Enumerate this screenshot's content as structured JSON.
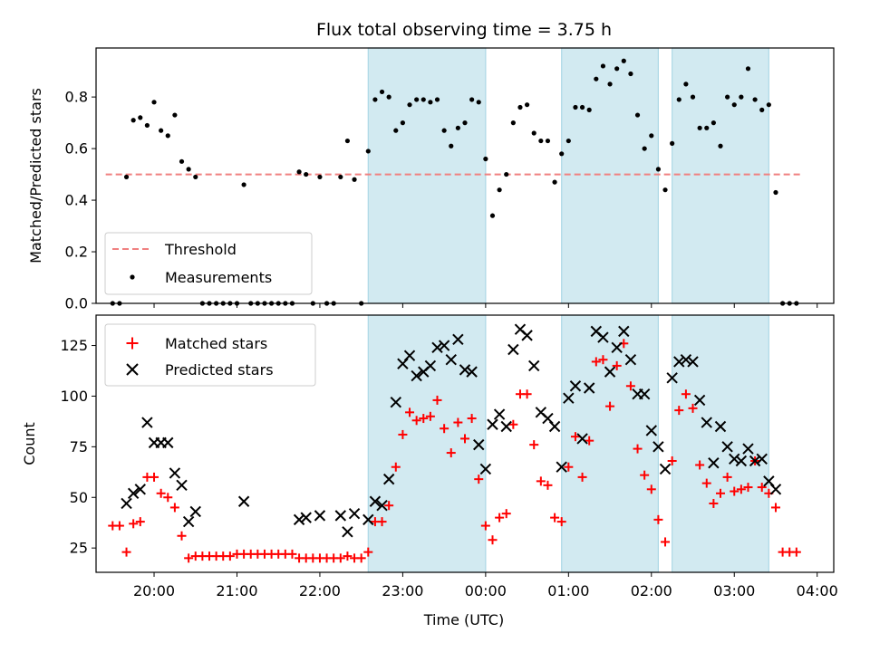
{
  "title": "Flux total observing time = 3.75 h",
  "colors": {
    "threshold": "#f08080",
    "measurements": "#000000",
    "matched": "#ff0000",
    "predicted": "#000000",
    "shade": "#add8e6"
  },
  "chart_data": [
    {
      "type": "scatter",
      "ylabel": "Matched/Predicted stars",
      "xlim": [
        19.3,
        4.2
      ],
      "ylim": [
        0,
        0.99
      ],
      "yticks": [
        0.0,
        0.2,
        0.4,
        0.6,
        0.8
      ],
      "ytick_labels": [
        "0.0",
        "0.2",
        "0.4",
        "0.6",
        "0.8"
      ],
      "shaded_regions": [
        [
          "22:35",
          "00:00"
        ],
        [
          "00:55",
          "02:05"
        ],
        [
          "02:15",
          "03:25"
        ]
      ],
      "legend_position": "lower-left",
      "threshold": {
        "name": "Threshold",
        "value": 0.5,
        "x_range": [
          "19:25",
          "03:50"
        ],
        "style": "dashed"
      },
      "series": [
        {
          "name": "Measurements",
          "x": [
            "19:30",
            "19:35",
            "19:40",
            "19:45",
            "19:50",
            "19:55",
            "20:00",
            "20:05",
            "20:10",
            "20:15",
            "20:20",
            "20:25",
            "20:30",
            "20:35",
            "20:40",
            "20:45",
            "20:50",
            "20:55",
            "21:00",
            "21:05",
            "21:10",
            "21:15",
            "21:20",
            "21:25",
            "21:30",
            "21:35",
            "21:40",
            "21:45",
            "21:50",
            "21:55",
            "22:00",
            "22:05",
            "22:10",
            "22:15",
            "22:20",
            "22:25",
            "22:30",
            "22:35",
            "22:40",
            "22:45",
            "22:50",
            "22:55",
            "23:00",
            "23:05",
            "23:10",
            "23:15",
            "23:20",
            "23:25",
            "23:30",
            "23:35",
            "23:40",
            "23:45",
            "23:50",
            "23:55",
            "00:00",
            "00:05",
            "00:10",
            "00:15",
            "00:20",
            "00:25",
            "00:30",
            "00:35",
            "00:40",
            "00:45",
            "00:50",
            "00:55",
            "01:00",
            "01:05",
            "01:10",
            "01:15",
            "01:20",
            "01:25",
            "01:30",
            "01:35",
            "01:40",
            "01:45",
            "01:50",
            "01:55",
            "02:00",
            "02:05",
            "02:10",
            "02:15",
            "02:20",
            "02:25",
            "02:30",
            "02:35",
            "02:40",
            "02:45",
            "02:50",
            "02:55",
            "03:00",
            "03:05",
            "03:10",
            "03:15",
            "03:20",
            "03:25",
            "03:30",
            "03:35",
            "03:40",
            "03:45"
          ],
          "y": [
            0.0,
            0.0,
            0.49,
            0.71,
            0.72,
            0.69,
            0.78,
            0.67,
            0.65,
            0.73,
            0.55,
            0.52,
            0.49,
            0.0,
            0.0,
            0.0,
            0.0,
            0.0,
            0.0,
            0.46,
            0.0,
            0.0,
            0.0,
            0.0,
            0.0,
            0.0,
            0.0,
            0.51,
            0.5,
            0.0,
            0.49,
            0.0,
            0.0,
            0.49,
            0.63,
            0.48,
            0.0,
            0.59,
            0.79,
            0.82,
            0.8,
            0.67,
            0.7,
            0.77,
            0.79,
            0.79,
            0.78,
            0.79,
            0.67,
            0.61,
            0.68,
            0.7,
            0.79,
            0.78,
            0.56,
            0.34,
            0.44,
            0.5,
            0.7,
            0.76,
            0.77,
            0.66,
            0.63,
            0.63,
            0.47,
            0.58,
            0.63,
            0.76,
            0.76,
            0.75,
            0.87,
            0.92,
            0.85,
            0.91,
            0.94,
            0.89,
            0.73,
            0.6,
            0.65,
            0.52,
            0.44,
            0.62,
            0.79,
            0.85,
            0.8,
            0.68,
            0.68,
            0.7,
            0.61,
            0.8,
            0.77,
            0.8,
            0.91,
            0.79,
            0.75,
            0.77,
            0.43,
            0.0,
            0.0,
            0.0
          ]
        }
      ]
    },
    {
      "type": "scatter",
      "xlabel": "Time (UTC)",
      "ylabel": "Count",
      "xlim": [
        19.3,
        4.2
      ],
      "ylim": [
        13,
        140
      ],
      "yticks": [
        25,
        50,
        75,
        100,
        125
      ],
      "ytick_labels": [
        "25",
        "50",
        "75",
        "100",
        "125"
      ],
      "xticks": [
        "20:00",
        "21:00",
        "22:00",
        "23:00",
        "00:00",
        "01:00",
        "02:00",
        "03:00",
        "04:00"
      ],
      "shaded_regions": [
        [
          "22:35",
          "00:00"
        ],
        [
          "00:55",
          "02:05"
        ],
        [
          "02:15",
          "03:25"
        ]
      ],
      "legend_position": "upper-left",
      "series": [
        {
          "name": "Matched stars",
          "marker": "plus",
          "x": [
            "19:30",
            "19:35",
            "19:40",
            "19:45",
            "19:50",
            "19:55",
            "20:00",
            "20:05",
            "20:10",
            "20:15",
            "20:20",
            "20:25",
            "20:30",
            "20:35",
            "20:40",
            "20:45",
            "20:50",
            "20:55",
            "21:00",
            "21:05",
            "21:10",
            "21:15",
            "21:20",
            "21:25",
            "21:30",
            "21:35",
            "21:40",
            "21:45",
            "21:50",
            "21:55",
            "22:00",
            "22:05",
            "22:10",
            "22:15",
            "22:20",
            "22:25",
            "22:30",
            "22:35",
            "22:40",
            "22:45",
            "22:50",
            "22:55",
            "23:00",
            "23:05",
            "23:10",
            "23:15",
            "23:20",
            "23:25",
            "23:30",
            "23:35",
            "23:40",
            "23:45",
            "23:50",
            "23:55",
            "00:00",
            "00:05",
            "00:10",
            "00:15",
            "00:20",
            "00:25",
            "00:30",
            "00:35",
            "00:40",
            "00:45",
            "00:50",
            "00:55",
            "01:00",
            "01:05",
            "01:10",
            "01:15",
            "01:20",
            "01:25",
            "01:30",
            "01:35",
            "01:40",
            "01:45",
            "01:50",
            "01:55",
            "02:00",
            "02:05",
            "02:10",
            "02:15",
            "02:20",
            "02:25",
            "02:30",
            "02:35",
            "02:40",
            "02:45",
            "02:50",
            "02:55",
            "03:00",
            "03:05",
            "03:10",
            "03:15",
            "03:20",
            "03:25",
            "03:30",
            "03:35",
            "03:40",
            "03:45"
          ],
          "y": [
            36,
            36,
            23,
            37,
            38,
            60,
            60,
            52,
            50,
            45,
            31,
            20,
            21,
            21,
            21,
            21,
            21,
            21,
            22,
            22,
            22,
            22,
            22,
            22,
            22,
            22,
            22,
            20,
            20,
            20,
            20,
            20,
            20,
            20,
            21,
            20,
            20,
            23,
            38,
            38,
            46,
            65,
            81,
            92,
            88,
            89,
            90,
            98,
            84,
            72,
            87,
            79,
            89,
            59,
            36,
            29,
            40,
            42,
            86,
            101,
            101,
            76,
            58,
            56,
            40,
            38,
            65,
            80,
            60,
            78,
            117,
            118,
            95,
            115,
            126,
            105,
            74,
            61,
            54,
            39,
            28,
            68,
            93,
            101,
            94,
            66,
            57,
            47,
            52,
            60,
            53,
            54,
            55,
            68,
            55,
            52,
            45,
            23,
            23,
            23
          ]
        },
        {
          "name": "Predicted stars",
          "marker": "x",
          "x": [
            "19:40",
            "19:45",
            "19:50",
            "19:55",
            "20:00",
            "20:05",
            "20:10",
            "20:15",
            "20:20",
            "20:25",
            "20:30",
            "21:05",
            "21:45",
            "21:50",
            "22:00",
            "22:15",
            "22:20",
            "22:25",
            "22:35",
            "22:40",
            "22:45",
            "22:50",
            "22:55",
            "23:00",
            "23:05",
            "23:10",
            "23:15",
            "23:20",
            "23:25",
            "23:30",
            "23:35",
            "23:40",
            "23:45",
            "23:50",
            "23:55",
            "00:00",
            "00:05",
            "00:10",
            "00:15",
            "00:20",
            "00:25",
            "00:30",
            "00:35",
            "00:40",
            "00:45",
            "00:50",
            "00:55",
            "01:00",
            "01:05",
            "01:10",
            "01:15",
            "01:20",
            "01:25",
            "01:30",
            "01:35",
            "01:40",
            "01:45",
            "01:50",
            "01:55",
            "02:00",
            "02:05",
            "02:10",
            "02:15",
            "02:20",
            "02:25",
            "02:30",
            "02:35",
            "02:40",
            "02:45",
            "02:50",
            "02:55",
            "03:00",
            "03:05",
            "03:10",
            "03:15",
            "03:20",
            "03:25",
            "03:30"
          ],
          "y": [
            47,
            52,
            54,
            87,
            77,
            77,
            77,
            62,
            56,
            38,
            43,
            48,
            39,
            40,
            41,
            41,
            33,
            42,
            39,
            48,
            46,
            59,
            97,
            116,
            120,
            110,
            112,
            115,
            124,
            125,
            118,
            128,
            113,
            112,
            76,
            64,
            86,
            91,
            85,
            123,
            133,
            130,
            115,
            92,
            89,
            85,
            65,
            99,
            105,
            79,
            104,
            132,
            129,
            112,
            124,
            132,
            118,
            101,
            101,
            83,
            75,
            64,
            109,
            117,
            118,
            117,
            98,
            87,
            67,
            85,
            75,
            69,
            68,
            74,
            68,
            69,
            58,
            54
          ]
        }
      ]
    }
  ]
}
